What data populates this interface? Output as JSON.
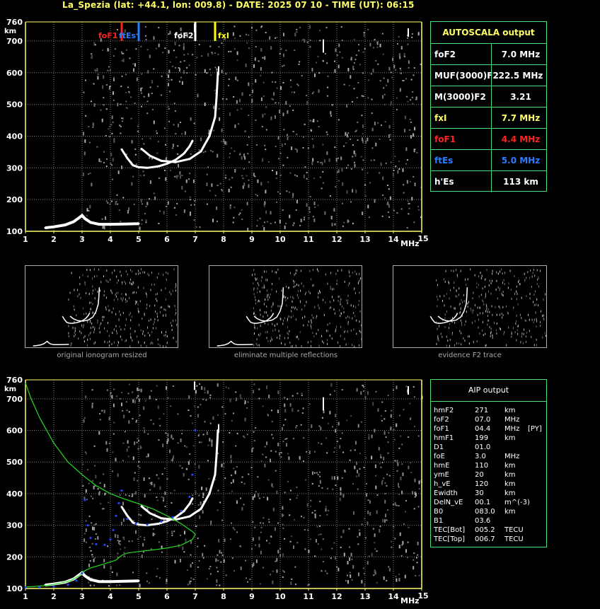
{
  "header": {
    "title": "La_Spezia (lat: +44.1, lon: 009.8) - DATE: 2025 07 10 - TIME (UT): 06:15"
  },
  "colors": {
    "axis": "#ffff66",
    "grid": "#808080",
    "trace": "#ffffff",
    "green_curve": "#22dd22",
    "blue_points": "#2244ff",
    "foF1": "#ff2020",
    "ftEs": "#2a7dff",
    "fxI": "#ffff00",
    "box_border": "#4fdc7a"
  },
  "chart_data": [
    {
      "type": "scatter",
      "id": "ionogram_top",
      "x_unit": "MHz",
      "y_unit": "km",
      "xlim": [
        1,
        15
      ],
      "ylim": [
        100,
        760
      ],
      "x_ticks": [
        "1",
        "2",
        "3",
        "4",
        "5",
        "6",
        "7",
        "8",
        "9",
        "10",
        "11",
        "12",
        "13",
        "14",
        "15"
      ],
      "y_ticks": [
        "100",
        "200",
        "300",
        "400",
        "500",
        "600",
        "700",
        "760"
      ],
      "grid": true,
      "markers": [
        {
          "label": "foF1",
          "freq": 4.4,
          "color": "#ff2020"
        },
        {
          "label": "ftEs",
          "freq": 5.0,
          "color": "#2a7dff"
        },
        {
          "label": "foF2",
          "freq": 7.0,
          "color": "#ffffff"
        },
        {
          "label": "fxI",
          "freq": 7.7,
          "color": "#ffff00"
        }
      ],
      "traces": {
        "E_layer": [
          [
            1.7,
            111
          ],
          [
            2.0,
            114
          ],
          [
            2.4,
            120
          ],
          [
            2.7,
            130
          ],
          [
            2.9,
            143
          ],
          [
            3.0,
            150
          ],
          [
            3.1,
            140
          ],
          [
            3.3,
            128
          ],
          [
            3.6,
            122
          ],
          [
            4.0,
            122
          ],
          [
            4.5,
            123
          ],
          [
            5.0,
            124
          ]
        ],
        "F_ordinary": [
          [
            4.4,
            358
          ],
          [
            4.6,
            330
          ],
          [
            4.8,
            308
          ],
          [
            5.0,
            302
          ],
          [
            5.3,
            300
          ],
          [
            5.7,
            305
          ],
          [
            6.0,
            313
          ],
          [
            6.3,
            325
          ],
          [
            6.6,
            345
          ],
          [
            6.8,
            368
          ],
          [
            6.9,
            385
          ]
        ],
        "F_extraordinary": [
          [
            5.1,
            360
          ],
          [
            5.4,
            338
          ],
          [
            5.8,
            322
          ],
          [
            6.3,
            318
          ],
          [
            6.8,
            328
          ],
          [
            7.2,
            352
          ],
          [
            7.5,
            400
          ],
          [
            7.7,
            460
          ],
          [
            7.75,
            520
          ],
          [
            7.8,
            600
          ]
        ]
      }
    },
    {
      "type": "scatter",
      "id": "ionogram_bottom",
      "x_unit": "MHz",
      "y_unit": "km",
      "xlim": [
        1,
        15
      ],
      "ylim": [
        100,
        760
      ],
      "x_ticks": [
        "1",
        "2",
        "3",
        "4",
        "5",
        "6",
        "7",
        "8",
        "9",
        "10",
        "11",
        "12",
        "13",
        "14",
        "15"
      ],
      "y_ticks": [
        "100",
        "200",
        "300",
        "400",
        "500",
        "600",
        "700",
        "760"
      ],
      "grid": true,
      "profile": [
        [
          1.0,
          750
        ],
        [
          1.2,
          700
        ],
        [
          1.5,
          640
        ],
        [
          2.0,
          560
        ],
        [
          2.5,
          500
        ],
        [
          3.0,
          460
        ],
        [
          3.5,
          425
        ],
        [
          4.0,
          400
        ],
        [
          4.5,
          383
        ],
        [
          5.0,
          368
        ],
        [
          5.5,
          352
        ],
        [
          6.0,
          330
        ],
        [
          6.5,
          305
        ],
        [
          6.9,
          280
        ],
        [
          7.0,
          271
        ],
        [
          6.9,
          255
        ],
        [
          6.5,
          237
        ],
        [
          6.0,
          228
        ],
        [
          5.5,
          222
        ],
        [
          5.0,
          217
        ],
        [
          4.6,
          212
        ],
        [
          4.4,
          205
        ],
        [
          4.2,
          190
        ],
        [
          3.8,
          178
        ],
        [
          3.3,
          165
        ],
        [
          3.0,
          152
        ],
        [
          2.9,
          140
        ],
        [
          2.6,
          125
        ],
        [
          2.2,
          116
        ],
        [
          1.8,
          110
        ],
        [
          1.4,
          107
        ],
        [
          1.0,
          105
        ]
      ],
      "modeled_points": [
        [
          1.0,
          104
        ],
        [
          1.5,
          104
        ],
        [
          2.0,
          106
        ],
        [
          2.5,
          112
        ],
        [
          2.8,
          125
        ],
        [
          3.0,
          148
        ],
        [
          3.1,
          380
        ],
        [
          3.2,
          300
        ],
        [
          3.3,
          260
        ],
        [
          3.5,
          240
        ],
        [
          3.8,
          238
        ],
        [
          4.0,
          255
        ],
        [
          4.1,
          285
        ],
        [
          4.2,
          330
        ],
        [
          4.3,
          370
        ],
        [
          4.4,
          410
        ],
        [
          4.6,
          320
        ],
        [
          4.9,
          305
        ],
        [
          5.3,
          302
        ],
        [
          5.8,
          312
        ],
        [
          6.2,
          325
        ],
        [
          6.5,
          345
        ],
        [
          6.8,
          390
        ],
        [
          6.9,
          460
        ],
        [
          7.0,
          600
        ]
      ]
    }
  ],
  "autoscala": {
    "title": "AUTOSCALA output",
    "rows": [
      {
        "key": "foF2",
        "value": "7.0 MHz",
        "color": "#ffffff"
      },
      {
        "key": "MUF(3000)F2",
        "value": "22.5 MHz",
        "color": "#ffffff"
      },
      {
        "key": "M(3000)F2",
        "value": "3.21",
        "color": "#ffffff"
      },
      {
        "key": "fxI",
        "value": "7.7 MHz",
        "color": "#ffff66"
      },
      {
        "key": "foF1",
        "value": "4.4 MHz",
        "color": "#ff2020"
      },
      {
        "key": "ftEs",
        "value": "5.0 MHz",
        "color": "#2a7dff"
      },
      {
        "key": "h'Es",
        "value": "113     km",
        "color": "#ffffff"
      }
    ]
  },
  "aip": {
    "title": "AIP output",
    "rows": [
      {
        "name": "hmF2",
        "value": "271",
        "unit": "km",
        "extra": ""
      },
      {
        "name": "foF2",
        "value": "07.0",
        "unit": "MHz",
        "extra": ""
      },
      {
        "name": "foF1",
        "value": "04.4",
        "unit": "MHz",
        "extra": "[PY]"
      },
      {
        "name": "hmF1",
        "value": "199",
        "unit": "km",
        "extra": ""
      },
      {
        "name": "D1",
        "value": "01.0",
        "unit": "",
        "extra": ""
      },
      {
        "name": "foE",
        "value": "3.0",
        "unit": "MHz",
        "extra": ""
      },
      {
        "name": "hmE",
        "value": "110",
        "unit": "km",
        "extra": ""
      },
      {
        "name": "ymE",
        "value": "20",
        "unit": "km",
        "extra": ""
      },
      {
        "name": "h_vE",
        "value": "120",
        "unit": "km",
        "extra": ""
      },
      {
        "name": "Ewidth",
        "value": "30",
        "unit": "km",
        "extra": ""
      },
      {
        "name": "DelN_vE",
        "value": "00.1",
        "unit": "m^(-3)",
        "extra": ""
      },
      {
        "name": "B0",
        "value": "083.0",
        "unit": "km",
        "extra": ""
      },
      {
        "name": "B1",
        "value": "03.6",
        "unit": "",
        "extra": ""
      },
      {
        "name": "TEC[Bot]",
        "value": "005.2",
        "unit": "TECU",
        "extra": ""
      },
      {
        "name": "TEC[Top]",
        "value": "006.7",
        "unit": "TECU",
        "extra": ""
      }
    ]
  },
  "thumbnails": [
    {
      "caption": "original ionogram resized"
    },
    {
      "caption": "eliminate multiple reflections"
    },
    {
      "caption": "evidence F2 trace"
    }
  ],
  "axis_labels": {
    "y_unit": "km",
    "x_unit": "MHz"
  }
}
